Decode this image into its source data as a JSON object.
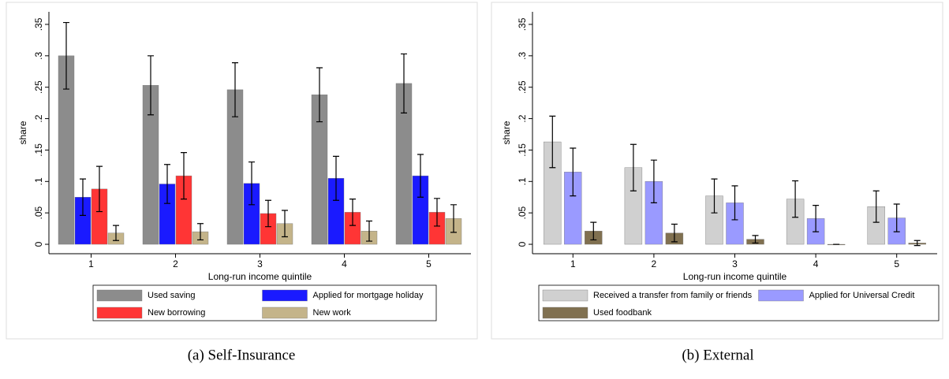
{
  "chart_data": [
    {
      "type": "bar",
      "caption": "(a) Self-Insurance",
      "ylabel": "share",
      "xlabel": "Long-run income quintile",
      "categories": [
        "1",
        "2",
        "3",
        "4",
        "5"
      ],
      "ylim": [
        -0.015,
        0.37
      ],
      "yticks": [
        {
          "value": 0,
          "label": "0"
        },
        {
          "value": 0.05,
          "label": ".05"
        },
        {
          "value": 0.1,
          "label": ".1"
        },
        {
          "value": 0.15,
          "label": ".15"
        },
        {
          "value": 0.2,
          "label": ".2"
        },
        {
          "value": 0.25,
          "label": ".25"
        },
        {
          "value": 0.3,
          "label": ".3"
        },
        {
          "value": 0.35,
          "label": ".35"
        }
      ],
      "grid": false,
      "series": [
        {
          "name": "Used saving",
          "color": "#8c8c8c",
          "values": [
            0.3,
            0.253,
            0.246,
            0.238,
            0.256
          ],
          "errors": [
            0.053,
            0.047,
            0.043,
            0.043,
            0.047
          ]
        },
        {
          "name": "Applied for mortgage holiday",
          "color": "#1a1aff",
          "values": [
            0.075,
            0.096,
            0.097,
            0.105,
            0.109
          ],
          "errors": [
            0.029,
            0.031,
            0.034,
            0.035,
            0.034
          ]
        },
        {
          "name": "New borrowing",
          "color": "#ff3535",
          "values": [
            0.088,
            0.109,
            0.049,
            0.051,
            0.051
          ],
          "errors": [
            0.036,
            0.037,
            0.021,
            0.021,
            0.022
          ]
        },
        {
          "name": "New work",
          "color": "#c4b48a",
          "values": [
            0.018,
            0.02,
            0.033,
            0.021,
            0.041
          ],
          "errors": [
            0.012,
            0.013,
            0.021,
            0.016,
            0.022
          ]
        }
      ]
    },
    {
      "type": "bar",
      "caption": "(b) External",
      "ylabel": "share",
      "xlabel": "Long-run income quintile",
      "categories": [
        "1",
        "2",
        "3",
        "4",
        "5"
      ],
      "ylim": [
        -0.015,
        0.37
      ],
      "yticks": [
        {
          "value": 0,
          "label": "0"
        },
        {
          "value": 0.05,
          "label": ".05"
        },
        {
          "value": 0.1,
          "label": ".1"
        },
        {
          "value": 0.15,
          "label": ".15"
        },
        {
          "value": 0.2,
          "label": ".2"
        },
        {
          "value": 0.25,
          "label": ".25"
        },
        {
          "value": 0.3,
          "label": ".3"
        },
        {
          "value": 0.35,
          "label": ".35"
        }
      ],
      "grid": false,
      "series": [
        {
          "name": "Received a transfer from family or friends",
          "color": "#d0d0d0",
          "values": [
            0.163,
            0.122,
            0.077,
            0.072,
            0.06
          ],
          "errors": [
            0.041,
            0.037,
            0.027,
            0.029,
            0.025
          ]
        },
        {
          "name": "Applied for Universal Credit",
          "color": "#9a9aff",
          "values": [
            0.115,
            0.1,
            0.066,
            0.041,
            0.042
          ],
          "errors": [
            0.038,
            0.034,
            0.027,
            0.021,
            0.022
          ]
        },
        {
          "name": "Used foodbank",
          "color": "#807050",
          "values": [
            0.021,
            0.018,
            0.008,
            0,
            0.002
          ],
          "errors": [
            0.014,
            0.014,
            0.006,
            0,
            0.004
          ]
        }
      ]
    }
  ]
}
